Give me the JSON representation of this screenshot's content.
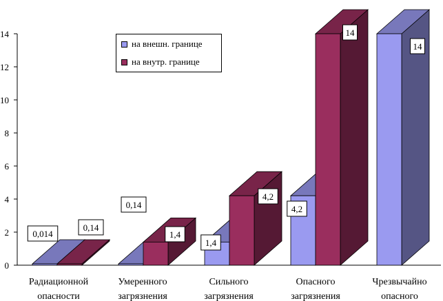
{
  "chart_data": {
    "type": "bar",
    "style": "3d-grouped",
    "categories": [
      [
        "Радиационной",
        "опасности"
      ],
      [
        "Умеренного",
        "загрязнения"
      ],
      [
        "Сильного",
        "загрязнения"
      ],
      [
        "Опасного",
        "загрязнения"
      ],
      [
        "Чрезвычайно",
        "опасного"
      ]
    ],
    "series": [
      {
        "name": "на внешн. границе",
        "color": "#9a9af0",
        "values": [
          0.014,
          0.14,
          1.4,
          4.2,
          14
        ],
        "labels": [
          "0,014",
          "0,14",
          "1,4",
          "4,2",
          "14"
        ]
      },
      {
        "name": "на внутр. границе",
        "color": "#9a2e5e",
        "values": [
          0.14,
          1.4,
          4.2,
          14,
          null
        ],
        "labels": [
          "0,14",
          "1,4",
          "4,2",
          "14",
          ""
        ]
      }
    ],
    "y_ticks": [
      "0",
      "2",
      "4",
      "6",
      "8",
      "10",
      "12",
      "14"
    ],
    "ylim": [
      0,
      14
    ],
    "legend_position": "top-left",
    "grid": false
  }
}
